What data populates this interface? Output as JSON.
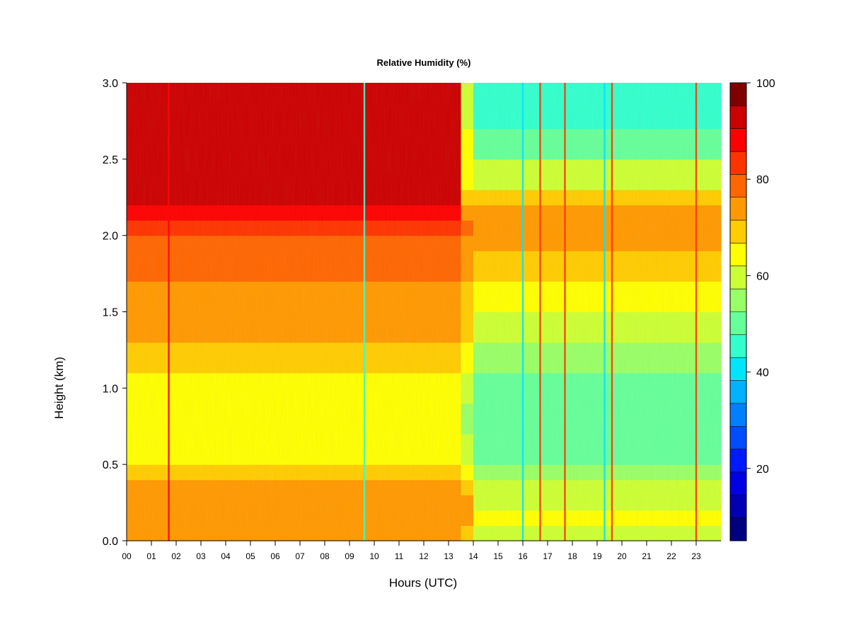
{
  "chart_data": {
    "type": "heatmap",
    "title": "Relative Humidity (%)",
    "xlabel": "Hours (UTC)",
    "ylabel": "Height (km)",
    "xlim": [
      0,
      24
    ],
    "ylim": [
      0,
      3
    ],
    "x_ticks": [
      "00",
      "01",
      "02",
      "03",
      "04",
      "05",
      "06",
      "07",
      "08",
      "09",
      "10",
      "11",
      "12",
      "13",
      "14",
      "15",
      "16",
      "17",
      "18",
      "19",
      "20",
      "21",
      "22",
      "23"
    ],
    "y_ticks": [
      "0.0",
      "0.5",
      "1.0",
      "1.5",
      "2.0",
      "2.5",
      "3.0"
    ],
    "colorbar": {
      "min": 5,
      "max": 100,
      "step": 5,
      "ticks": [
        "20",
        "40",
        "60",
        "80",
        "100"
      ],
      "colors": [
        "#00007F",
        "#0000B2",
        "#0000E5",
        "#001AFF",
        "#004CFF",
        "#007FFF",
        "#00B2FF",
        "#00E5FF",
        "#33FFCC",
        "#66FF99",
        "#99FF66",
        "#CCFF33",
        "#FFFF00",
        "#FFCC00",
        "#FF9900",
        "#FF6600",
        "#FF3300",
        "#FF0000",
        "#CC0000",
        "#800000"
      ]
    },
    "heights_km": [
      0.0,
      0.1,
      0.2,
      0.3,
      0.4,
      0.5,
      0.7,
      0.9,
      1.1,
      1.3,
      1.5,
      1.7,
      1.9,
      2.0,
      2.1,
      2.2,
      2.3,
      2.5,
      2.7,
      3.0
    ],
    "hours": [
      0.0,
      0.5,
      1.0,
      1.5,
      2.0,
      2.5,
      3.0,
      3.5,
      4.0,
      4.5,
      5.0,
      5.5,
      6.0,
      6.5,
      7.0,
      7.5,
      8.0,
      8.5,
      9.0,
      9.5,
      10.0,
      10.5,
      11.0,
      11.5,
      12.0,
      12.5,
      13.0,
      13.5,
      14.0,
      14.5,
      15.0,
      15.5,
      16.0,
      16.5,
      17.0,
      17.5,
      18.0,
      18.5,
      19.0,
      19.5,
      20.0,
      20.5,
      21.0,
      21.5,
      22.0,
      22.5,
      23.0,
      23.5,
      24.0
    ],
    "profiles": [
      {
        "hours": [
          0.0,
          13.3
        ],
        "rh": [
          72,
          78,
          80,
          78,
          74,
          68,
          66,
          66,
          70,
          74,
          78,
          80,
          82,
          86,
          90,
          96,
          98,
          98,
          98,
          98
        ]
      },
      {
        "hours": [
          13.3,
          14.0
        ],
        "rh": [
          70,
          76,
          78,
          74,
          68,
          62,
          58,
          60,
          64,
          68,
          72,
          76,
          78,
          80,
          82,
          76,
          70,
          66,
          64,
          64
        ]
      },
      {
        "hours": [
          14.0,
          24.0
        ],
        "rh": [
          60,
          64,
          66,
          62,
          58,
          54,
          52,
          52,
          56,
          60,
          66,
          72,
          74,
          76,
          78,
          74,
          66,
          58,
          50,
          44
        ]
      }
    ],
    "streaks": [
      {
        "hour": 1.7,
        "rh": 90
      },
      {
        "hour": 9.6,
        "rh": 45
      },
      {
        "hour": 16.0,
        "rh": 42
      },
      {
        "hour": 16.7,
        "rh": 88
      },
      {
        "hour": 17.7,
        "rh": 88
      },
      {
        "hour": 19.3,
        "rh": 44
      },
      {
        "hour": 19.6,
        "rh": 88
      },
      {
        "hour": 23.0,
        "rh": 85
      }
    ]
  }
}
